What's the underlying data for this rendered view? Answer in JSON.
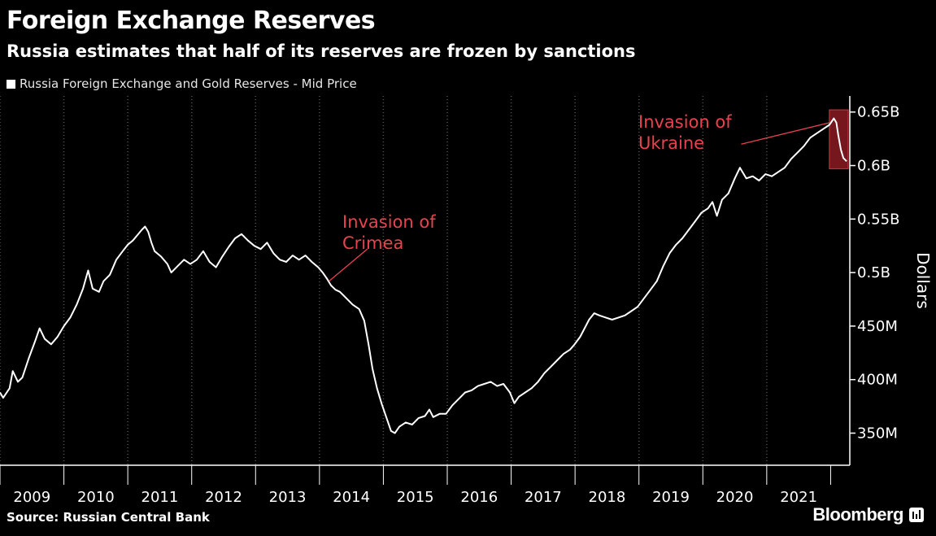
{
  "header": {
    "title": "Foreign Exchange Reserves",
    "subtitle": "Russia estimates that half of its reserves are frozen by sanctions"
  },
  "footer": {
    "source": "Source: Russian Central Bank",
    "brand": "Bloomberg",
    "brand_icon": "bloomberg-terminal-icon"
  },
  "colors": {
    "background": "#000000",
    "line": "#ffffff",
    "annotation": "#e8424f",
    "highlight": "#8b1a22",
    "axis_text": "#ffffff",
    "grid": "#555555"
  },
  "chart_data": {
    "type": "line",
    "title": "Foreign Exchange Reserves",
    "subtitle": "Russia estimates that half of its reserves are frozen by sanctions",
    "ylabel": "Dollars",
    "xlabel": "",
    "legend": {
      "position": "top-left",
      "entries": [
        "Russia Foreign Exchange and Gold Reserves - Mid Price"
      ]
    },
    "grid": {
      "x": true,
      "y": false
    },
    "xlim": [
      2009.0,
      2022.3
    ],
    "ylim": [
      320,
      665
    ],
    "y_ticks": [
      {
        "value": 350,
        "label": "350M"
      },
      {
        "value": 400,
        "label": "400M"
      },
      {
        "value": 450,
        "label": "450M"
      },
      {
        "value": 500,
        "label": "0.5B"
      },
      {
        "value": 550,
        "label": "0.55B"
      },
      {
        "value": 600,
        "label": "0.6B"
      },
      {
        "value": 650,
        "label": "0.65B"
      }
    ],
    "x_ticks": [
      {
        "value": 2009,
        "label": "2009"
      },
      {
        "value": 2010,
        "label": "2010"
      },
      {
        "value": 2011,
        "label": "2011"
      },
      {
        "value": 2012,
        "label": "2012"
      },
      {
        "value": 2013,
        "label": "2013"
      },
      {
        "value": 2014,
        "label": "2014"
      },
      {
        "value": 2015,
        "label": "2015"
      },
      {
        "value": 2016,
        "label": "2016"
      },
      {
        "value": 2017,
        "label": "2017"
      },
      {
        "value": 2018,
        "label": "2018"
      },
      {
        "value": 2019,
        "label": "2019"
      },
      {
        "value": 2020,
        "label": "2020"
      },
      {
        "value": 2021,
        "label": "2021"
      }
    ],
    "series": [
      {
        "name": "Russia Foreign Exchange and Gold Reserves - Mid Price",
        "points": [
          [
            2009.0,
            388
          ],
          [
            2009.05,
            383
          ],
          [
            2009.15,
            392
          ],
          [
            2009.2,
            408
          ],
          [
            2009.28,
            398
          ],
          [
            2009.35,
            402
          ],
          [
            2009.45,
            420
          ],
          [
            2009.55,
            436
          ],
          [
            2009.62,
            448
          ],
          [
            2009.7,
            438
          ],
          [
            2009.8,
            433
          ],
          [
            2009.9,
            440
          ],
          [
            2010.0,
            450
          ],
          [
            2010.1,
            458
          ],
          [
            2010.2,
            470
          ],
          [
            2010.3,
            485
          ],
          [
            2010.38,
            502
          ],
          [
            2010.45,
            485
          ],
          [
            2010.55,
            482
          ],
          [
            2010.62,
            492
          ],
          [
            2010.72,
            498
          ],
          [
            2010.82,
            512
          ],
          [
            2010.92,
            520
          ],
          [
            2011.0,
            526
          ],
          [
            2011.08,
            530
          ],
          [
            2011.15,
            535
          ],
          [
            2011.22,
            540
          ],
          [
            2011.27,
            543
          ],
          [
            2011.32,
            538
          ],
          [
            2011.37,
            528
          ],
          [
            2011.42,
            520
          ],
          [
            2011.52,
            515
          ],
          [
            2011.62,
            508
          ],
          [
            2011.68,
            500
          ],
          [
            2011.78,
            506
          ],
          [
            2011.88,
            512
          ],
          [
            2011.98,
            508
          ],
          [
            2012.08,
            512
          ],
          [
            2012.18,
            520
          ],
          [
            2012.28,
            510
          ],
          [
            2012.38,
            505
          ],
          [
            2012.48,
            515
          ],
          [
            2012.58,
            524
          ],
          [
            2012.68,
            532
          ],
          [
            2012.78,
            536
          ],
          [
            2012.88,
            530
          ],
          [
            2012.98,
            525
          ],
          [
            2013.08,
            522
          ],
          [
            2013.18,
            528
          ],
          [
            2013.28,
            518
          ],
          [
            2013.38,
            512
          ],
          [
            2013.48,
            510
          ],
          [
            2013.58,
            516
          ],
          [
            2013.68,
            512
          ],
          [
            2013.78,
            516
          ],
          [
            2013.88,
            510
          ],
          [
            2013.98,
            505
          ],
          [
            2014.05,
            500
          ],
          [
            2014.12,
            494
          ],
          [
            2014.18,
            488
          ],
          [
            2014.25,
            484
          ],
          [
            2014.32,
            482
          ],
          [
            2014.42,
            476
          ],
          [
            2014.52,
            470
          ],
          [
            2014.62,
            466
          ],
          [
            2014.7,
            455
          ],
          [
            2014.77,
            432
          ],
          [
            2014.83,
            410
          ],
          [
            2014.9,
            392
          ],
          [
            2014.97,
            378
          ],
          [
            2015.05,
            364
          ],
          [
            2015.12,
            352
          ],
          [
            2015.18,
            350
          ],
          [
            2015.25,
            356
          ],
          [
            2015.35,
            360
          ],
          [
            2015.45,
            358
          ],
          [
            2015.55,
            364
          ],
          [
            2015.65,
            366
          ],
          [
            2015.72,
            372
          ],
          [
            2015.78,
            365
          ],
          [
            2015.88,
            368
          ],
          [
            2015.98,
            368
          ],
          [
            2016.08,
            376
          ],
          [
            2016.18,
            382
          ],
          [
            2016.28,
            388
          ],
          [
            2016.38,
            390
          ],
          [
            2016.48,
            394
          ],
          [
            2016.58,
            396
          ],
          [
            2016.68,
            398
          ],
          [
            2016.78,
            394
          ],
          [
            2016.88,
            396
          ],
          [
            2016.98,
            388
          ],
          [
            2017.05,
            378
          ],
          [
            2017.12,
            384
          ],
          [
            2017.22,
            388
          ],
          [
            2017.32,
            392
          ],
          [
            2017.42,
            398
          ],
          [
            2017.52,
            406
          ],
          [
            2017.62,
            412
          ],
          [
            2017.72,
            418
          ],
          [
            2017.82,
            424
          ],
          [
            2017.92,
            428
          ],
          [
            2017.98,
            432
          ],
          [
            2018.08,
            440
          ],
          [
            2018.15,
            448
          ],
          [
            2018.22,
            456
          ],
          [
            2018.3,
            462
          ],
          [
            2018.38,
            460
          ],
          [
            2018.48,
            458
          ],
          [
            2018.58,
            456
          ],
          [
            2018.68,
            458
          ],
          [
            2018.78,
            460
          ],
          [
            2018.88,
            464
          ],
          [
            2018.98,
            468
          ],
          [
            2019.08,
            476
          ],
          [
            2019.18,
            484
          ],
          [
            2019.28,
            492
          ],
          [
            2019.38,
            506
          ],
          [
            2019.48,
            518
          ],
          [
            2019.58,
            526
          ],
          [
            2019.68,
            532
          ],
          [
            2019.78,
            540
          ],
          [
            2019.88,
            548
          ],
          [
            2019.98,
            556
          ],
          [
            2020.08,
            560
          ],
          [
            2020.15,
            566
          ],
          [
            2020.22,
            553
          ],
          [
            2020.3,
            568
          ],
          [
            2020.4,
            574
          ],
          [
            2020.5,
            588
          ],
          [
            2020.58,
            598
          ],
          [
            2020.68,
            588
          ],
          [
            2020.78,
            590
          ],
          [
            2020.88,
            586
          ],
          [
            2020.98,
            592
          ],
          [
            2021.08,
            590
          ],
          [
            2021.18,
            594
          ],
          [
            2021.28,
            598
          ],
          [
            2021.38,
            606
          ],
          [
            2021.48,
            612
          ],
          [
            2021.58,
            618
          ],
          [
            2021.68,
            626
          ],
          [
            2021.78,
            630
          ],
          [
            2021.88,
            634
          ],
          [
            2021.98,
            638
          ],
          [
            2022.05,
            644
          ],
          [
            2022.09,
            640
          ],
          [
            2022.12,
            628
          ],
          [
            2022.16,
            615
          ],
          [
            2022.2,
            607
          ],
          [
            2022.25,
            604
          ]
        ]
      }
    ],
    "highlight_region": {
      "x0": 2021.98,
      "x1": 2022.5
    },
    "annotations": [
      {
        "text_lines": [
          "Invasion of",
          "Crimea"
        ],
        "target": [
          2014.15,
          492
        ],
        "pointer_from": [
          2014.75,
          522
        ]
      },
      {
        "text_lines": [
          "Invasion of",
          "Ukraine"
        ],
        "target": [
          2021.98,
          640
        ],
        "pointer_from": [
          2020.6,
          620
        ]
      }
    ]
  }
}
